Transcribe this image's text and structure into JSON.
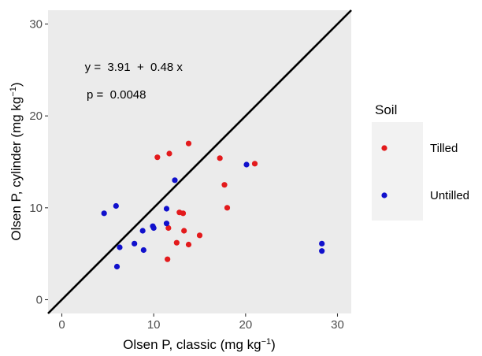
{
  "chart_data": {
    "type": "scatter",
    "xlabel": "Olsen P, classic (mg kg",
    "xlabel_sup": "−1",
    "xlabel_end": ")",
    "ylabel": "Olsen P, cylinder (mg kg",
    "ylabel_sup": "−1",
    "ylabel_end": ")",
    "xlim": [
      -1.5,
      31.5
    ],
    "ylim": [
      -1.5,
      31.5
    ],
    "x_ticks": [
      0,
      10,
      20,
      30
    ],
    "x_tick_labels": [
      "0",
      "10",
      "20",
      "30"
    ],
    "y_ticks": [
      0,
      10,
      20,
      30
    ],
    "y_tick_labels": [
      "0",
      "10",
      "20",
      "30"
    ],
    "grid": false,
    "panel_background": "#ebebeb",
    "reference_line": {
      "intercept": 0,
      "slope": 1,
      "color": "#000000"
    },
    "annotations": [
      {
        "key": "eq",
        "text": "y =  3.91  +  0.48 x",
        "x": 2.5,
        "y": 24.9
      },
      {
        "key": "p",
        "text": "p =  0.0048",
        "x": 2.7,
        "y": 21.9
      }
    ],
    "legend": {
      "title": "Soil",
      "position": "right"
    },
    "series": [
      {
        "name": "Tilled",
        "color": "#e31a1c",
        "points": [
          [
            10.4,
            15.5
          ],
          [
            11.7,
            15.9
          ],
          [
            13.8,
            17.0
          ],
          [
            17.2,
            15.4
          ],
          [
            21.0,
            14.8
          ],
          [
            17.7,
            12.5
          ],
          [
            12.8,
            9.5
          ],
          [
            13.2,
            9.4
          ],
          [
            18.0,
            10.0
          ],
          [
            11.6,
            7.8
          ],
          [
            13.3,
            7.5
          ],
          [
            15.0,
            7.0
          ],
          [
            12.5,
            6.2
          ],
          [
            13.8,
            6.0
          ],
          [
            11.5,
            4.4
          ]
        ]
      },
      {
        "name": "Untilled",
        "color": "#1010cc",
        "points": [
          [
            4.6,
            9.4
          ],
          [
            5.9,
            10.2
          ],
          [
            6.3,
            5.7
          ],
          [
            6.0,
            3.6
          ],
          [
            7.9,
            6.1
          ],
          [
            8.8,
            7.5
          ],
          [
            9.9,
            8.0
          ],
          [
            10.0,
            7.8
          ],
          [
            8.9,
            5.4
          ],
          [
            11.4,
            9.9
          ],
          [
            11.4,
            8.3
          ],
          [
            12.3,
            13.0
          ],
          [
            20.1,
            14.7
          ],
          [
            28.3,
            6.1
          ],
          [
            28.3,
            5.3
          ]
        ]
      }
    ]
  }
}
